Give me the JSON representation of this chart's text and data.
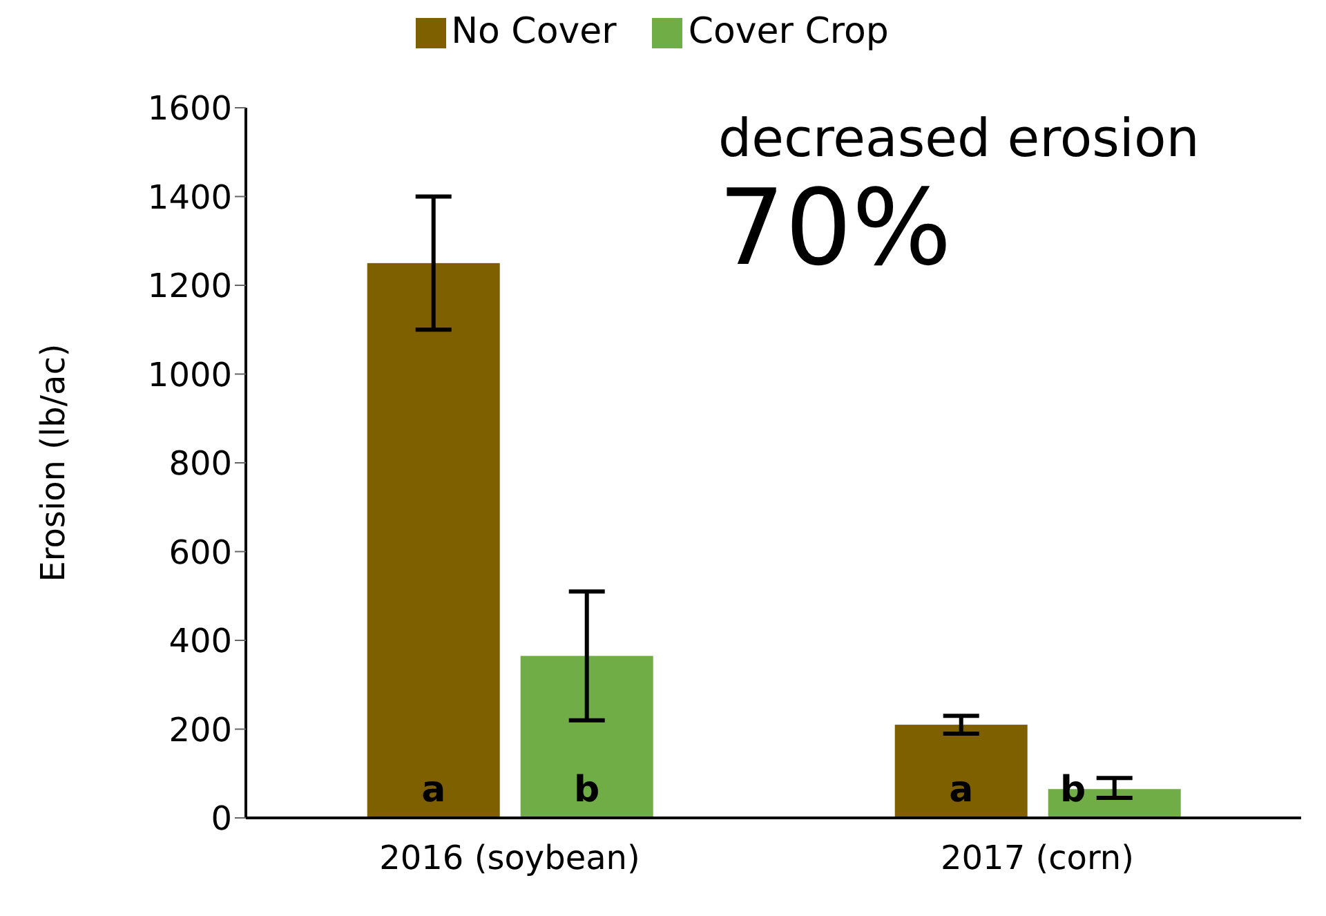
{
  "chart_data": {
    "type": "bar",
    "ylabel": "Erosion (lb/ac)",
    "categories": [
      "2016 (soybean)",
      "2017 (corn)"
    ],
    "series": [
      {
        "name": "No Cover",
        "color": "#7f6000",
        "values": [
          1250,
          210
        ],
        "errors": [
          [
            1100,
            1400
          ],
          [
            190,
            230
          ]
        ],
        "value_labels": [
          "a",
          "a"
        ]
      },
      {
        "name": "Cover Crop",
        "color": "#70ad47",
        "values": [
          365,
          65
        ],
        "errors": [
          [
            220,
            510
          ],
          [
            45,
            90
          ]
        ],
        "value_labels": [
          "b",
          "b"
        ]
      }
    ],
    "ylim": [
      0,
      1600
    ],
    "yticks": [
      0,
      200,
      400,
      600,
      800,
      1000,
      1200,
      1400,
      1600
    ],
    "grid": false,
    "legend": "top",
    "annotations": [
      "decreased erosion",
      "70%"
    ]
  }
}
